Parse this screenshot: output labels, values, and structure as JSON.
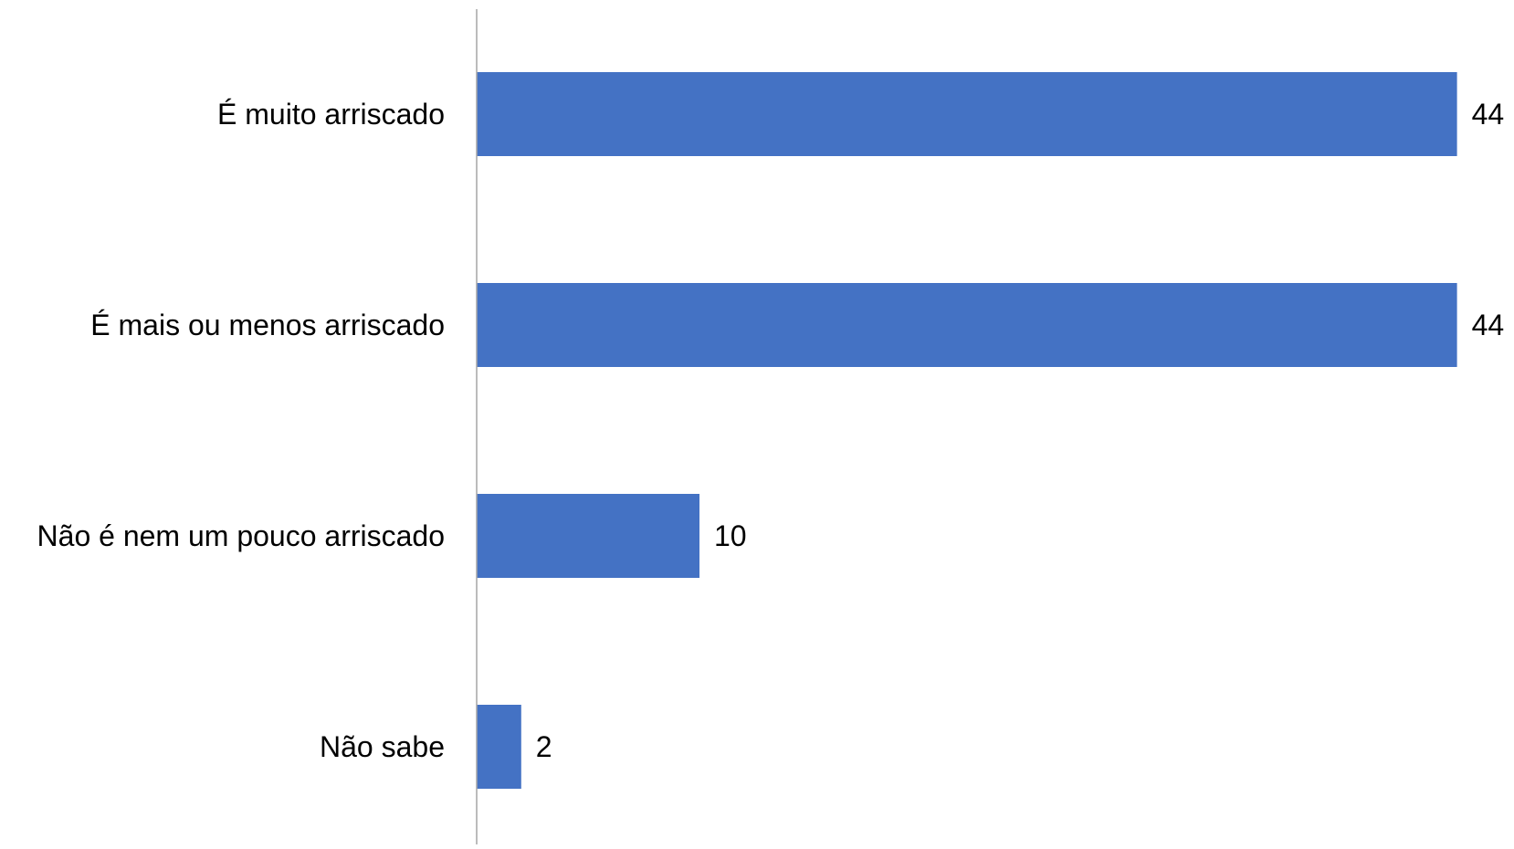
{
  "chart_data": {
    "type": "bar",
    "orientation": "horizontal",
    "categories": [
      "É muito arriscado",
      "É mais ou menos arriscado",
      "Não é nem um pouco arriscado",
      "Não sabe"
    ],
    "values": [
      44,
      44,
      10,
      2
    ],
    "data_labels": [
      "44",
      "44",
      "10",
      "2"
    ],
    "title": "",
    "xlabel": "",
    "ylabel": "",
    "xlim": [
      0,
      45
    ],
    "grid": false,
    "legend": "none",
    "colors": {
      "bar": "#4472C4",
      "axis": "#A6A6A6",
      "text": "#000000"
    }
  }
}
